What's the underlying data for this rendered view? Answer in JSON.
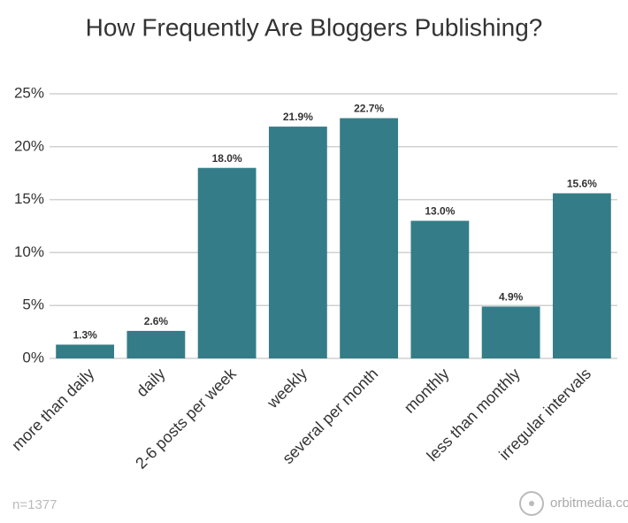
{
  "chart_data": {
    "type": "bar",
    "title": "How Frequently Are Bloggers Publishing?",
    "categories": [
      "more than daily",
      "daily",
      "2-6 posts per week",
      "weekly",
      "several per month",
      "monthly",
      "less than monthly",
      "irregular intervals"
    ],
    "values": [
      1.3,
      2.6,
      18.0,
      21.9,
      22.7,
      13.0,
      4.9,
      15.6
    ],
    "value_labels": [
      "1.3%",
      "2.6%",
      "18.0%",
      "21.9%",
      "22.7%",
      "13.0%",
      "4.9%",
      "15.6%"
    ],
    "color": "#347d88",
    "ylim": [
      0,
      25
    ],
    "yticks": [
      {
        "value": 0,
        "label": "0%"
      },
      {
        "value": 5,
        "label": "5%"
      },
      {
        "value": 10,
        "label": "10%"
      },
      {
        "value": 15,
        "label": "15%"
      },
      {
        "value": 20,
        "label": "20%"
      },
      {
        "value": 25,
        "label": "25%"
      }
    ],
    "grid": true,
    "footnote": "n=1377",
    "source": "orbitmedia.com"
  }
}
